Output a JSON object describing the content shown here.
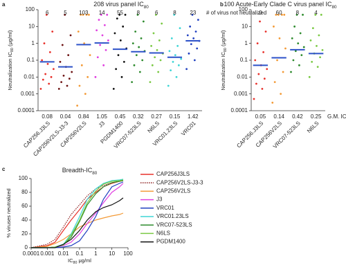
{
  "chart_data": [
    {
      "type": "strip",
      "panel": "a",
      "title": [
        "208 virus panel IC",
        "80"
      ],
      "ylabel": [
        "Neutralization IC",
        "80",
        " (μg/ml)"
      ],
      "log": true,
      "ylim": [
        0.0001,
        100
      ],
      "yticks": [
        0.0001,
        0.001,
        0.01,
        0.1,
        1,
        10,
        100
      ],
      "categories": [
        "CAP256.J3LS",
        "CAP256V2LS-J3-3",
        "CAP256V2LS",
        "J3",
        "PGDM1400",
        "VRC07-523LS",
        "N6LS",
        "VRC01.23LS",
        "VRC01"
      ],
      "colors": [
        "#e8302a",
        "#6b1010",
        "#f39a36",
        "#e03fe0",
        "#111111",
        "#2e8b2e",
        "#7ac943",
        "#3fd6d6",
        "#2040c0"
      ],
      "values": [
        [
          0.002,
          0.004,
          0.007,
          0.01,
          0.015,
          0.03,
          0.06,
          0.1,
          0.3,
          1,
          5,
          50
        ],
        [
          0.002,
          0.003,
          0.005,
          0.008,
          0.012,
          0.02,
          0.04,
          0.08,
          0.2,
          0.8,
          3,
          50
        ],
        [
          0.0002,
          0.001,
          0.003,
          0.01,
          0.05,
          0.2,
          1,
          5,
          50,
          50,
          50,
          50
        ],
        [
          0.01,
          0.05,
          0.15,
          0.4,
          0.8,
          1.5,
          3,
          6,
          12,
          25,
          50,
          50
        ],
        [
          0.002,
          0.01,
          0.03,
          0.08,
          0.2,
          0.5,
          1.5,
          4,
          10,
          30,
          50,
          50
        ],
        [
          0.005,
          0.02,
          0.05,
          0.1,
          0.2,
          0.35,
          0.6,
          1,
          2,
          5,
          20,
          50
        ],
        [
          0.005,
          0.02,
          0.05,
          0.1,
          0.15,
          0.25,
          0.4,
          0.7,
          1.5,
          4,
          15,
          50
        ],
        [
          0.003,
          0.01,
          0.025,
          0.05,
          0.08,
          0.12,
          0.2,
          0.35,
          0.7,
          2,
          8,
          50
        ],
        [
          0.03,
          0.1,
          0.25,
          0.5,
          0.9,
          1.4,
          2,
          3,
          5,
          10,
          25,
          50
        ]
      ],
      "gm": [
        0.08,
        0.04,
        0.84,
        1.05,
        0.45,
        0.32,
        0.27,
        0.15,
        1.42
      ],
      "not_neutralized": [
        6,
        5,
        103,
        14,
        55,
        8,
        6,
        8,
        23
      ],
      "nn_label": "# of virus not neutralized"
    },
    {
      "type": "strip",
      "panel": "b",
      "title": [
        "100 Acute-Early Clade C virus panel IC",
        "80"
      ],
      "ylabel": [
        "Neutralization IC",
        "80",
        " (μg/ml)"
      ],
      "log": true,
      "ylim": [
        0.0001,
        100
      ],
      "yticks": [
        0.0001,
        0.001,
        0.01,
        0.1,
        1,
        10,
        100
      ],
      "categories": [
        "CAP256.J3LS",
        "CAP256V2LS",
        "VRC07-523LS",
        "N6LS"
      ],
      "colors": [
        "#e8302a",
        "#f39a36",
        "#2e8b2e",
        "#7ac943"
      ],
      "values": [
        [
          0.0005,
          0.002,
          0.004,
          0.008,
          0.015,
          0.03,
          0.05,
          0.1,
          0.3,
          1,
          5,
          20
        ],
        [
          0.0003,
          0.001,
          0.005,
          0.02,
          0.1,
          0.5,
          2,
          10,
          50,
          50,
          50,
          50
        ],
        [
          0.02,
          0.05,
          0.1,
          0.2,
          0.35,
          0.6,
          1,
          2,
          4,
          10,
          50,
          50
        ],
        [
          0.01,
          0.04,
          0.08,
          0.15,
          0.25,
          0.4,
          0.7,
          1.5,
          3,
          8,
          50,
          50
        ]
      ],
      "gm": [
        0.05,
        0.14,
        0.42,
        0.25
      ],
      "not_neutralized": [
        0,
        60,
        8,
        4
      ],
      "gm_label": [
        "G.M. IC",
        "80"
      ]
    },
    {
      "type": "line",
      "panel": "c",
      "title": [
        "Breadth-IC",
        "80"
      ],
      "ylabel": [
        "% viruses neutralized"
      ],
      "xlabel": [
        "IC",
        "80",
        " μg/ml"
      ],
      "xlog": true,
      "xlim": [
        0.0001,
        100
      ],
      "xticks": [
        0.0001,
        0.001,
        0.01,
        0.1,
        1,
        10,
        100
      ],
      "ylim": [
        0,
        100
      ],
      "yticks": [
        0,
        20,
        40,
        60,
        80,
        100
      ],
      "x": [
        0.0001,
        0.001,
        0.003,
        0.01,
        0.03,
        0.1,
        0.3,
        1,
        3,
        10,
        30,
        50
      ],
      "series": [
        {
          "name": "CAP256J3LS",
          "color": "#e8302a",
          "values": [
            0,
            3,
            8,
            25,
            40,
            55,
            70,
            80,
            88,
            93,
            96,
            97
          ]
        },
        {
          "name": "CAP256V2LS-J3-3",
          "color": "#8b1a1a",
          "style": "dotted",
          "values": [
            0,
            5,
            12,
            30,
            48,
            62,
            75,
            85,
            90,
            94,
            96,
            98
          ]
        },
        {
          "name": "CAP256V2LS",
          "color": "#f39a36",
          "values": [
            0,
            2,
            6,
            12,
            20,
            30,
            35,
            40,
            43,
            46,
            48,
            50
          ]
        },
        {
          "name": "J3",
          "color": "#e03fe0",
          "values": [
            0,
            0,
            1,
            3,
            8,
            20,
            35,
            50,
            65,
            80,
            88,
            93
          ]
        },
        {
          "name": "VRC01",
          "color": "#2040c0",
          "values": [
            0,
            0,
            0,
            1,
            3,
            10,
            25,
            45,
            70,
            88,
            93,
            95
          ]
        },
        {
          "name": "VRC01.23LS",
          "color": "#3fd6d6",
          "values": [
            0,
            0,
            1,
            5,
            20,
            45,
            70,
            85,
            93,
            97,
            98,
            99
          ]
        },
        {
          "name": "VRC07-523LS",
          "color": "#2e8b2e",
          "values": [
            0,
            0,
            1,
            4,
            15,
            38,
            62,
            78,
            88,
            94,
            96,
            97
          ]
        },
        {
          "name": "N6LS",
          "color": "#7ac943",
          "values": [
            0,
            0,
            1,
            4,
            18,
            40,
            65,
            82,
            92,
            96,
            97,
            98
          ]
        },
        {
          "name": "PGDM1400",
          "color": "#111111",
          "values": [
            0,
            0,
            0,
            5,
            12,
            25,
            40,
            52,
            58,
            62,
            68,
            72
          ]
        }
      ]
    }
  ]
}
